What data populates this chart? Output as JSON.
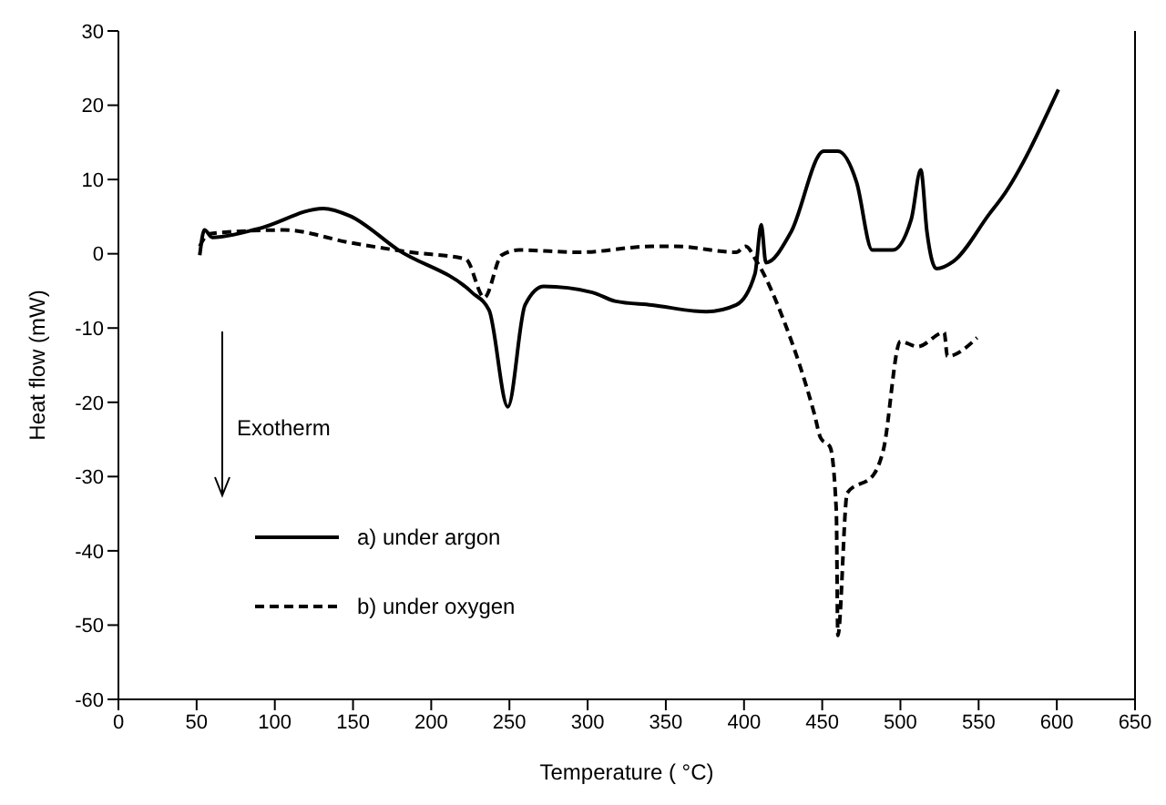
{
  "chart_data": {
    "type": "line",
    "xlabel": "Temperature ( °C)",
    "ylabel": "Heat flow (mW)",
    "annotations": [
      "Exotherm"
    ],
    "xlim": [
      0,
      650
    ],
    "xticks": [
      0,
      50,
      100,
      150,
      200,
      250,
      300,
      350,
      400,
      450,
      500,
      550,
      600,
      650
    ],
    "ylim": [
      -60,
      30
    ],
    "yticks": [
      -60,
      -50,
      -40,
      -30,
      -20,
      -10,
      0,
      10,
      20,
      30
    ],
    "grid": false,
    "legend": "bottom left",
    "marker": "none",
    "series": [
      {
        "name": "a) under argon",
        "color": "#000000",
        "line_style": "solid",
        "x": [
          52,
          55,
          60,
          90,
          131,
          148,
          179,
          226,
          237,
          249,
          260,
          272,
          303,
          318,
          341,
          376,
          395,
          407,
          411,
          414,
          430,
          451,
          460,
          472,
          482,
          495,
          507,
          513,
          517,
          523,
          534,
          557,
          565,
          601
        ],
        "values": [
          -0.2,
          3.2,
          2.2,
          3.4,
          6.1,
          5.1,
          0.5,
          -5.2,
          -7.6,
          -20.6,
          -6.9,
          -4.4,
          -5.2,
          -6.4,
          -6.9,
          -7.8,
          -6.9,
          -2.7,
          3.9,
          -1.2,
          2.9,
          13.8,
          13.8,
          9.6,
          0.5,
          0.5,
          4.7,
          11.3,
          2.9,
          -2,
          -1,
          5.4,
          7.6,
          22.1
        ]
      },
      {
        "name": "b) under oxygen",
        "color": "#000000",
        "line_style": "dashed",
        "x": [
          52,
          58,
          106,
          148,
          187,
          222,
          234,
          245,
          256,
          295,
          341,
          356,
          395,
          401,
          408,
          426,
          445,
          449,
          455,
          459,
          460,
          466,
          483,
          489,
          500,
          511,
          528,
          530,
          549
        ],
        "values": [
          1,
          2.7,
          3.2,
          1.5,
          0.2,
          -0.7,
          -5.9,
          -0.2,
          0.5,
          0.2,
          1,
          1,
          0.2,
          1,
          -1,
          -9.3,
          -21.6,
          -24.8,
          -26,
          -34.6,
          -51.4,
          -32.2,
          -29.7,
          -26.5,
          -11.8,
          -12.5,
          -10.6,
          -13.8,
          -11.3
        ]
      }
    ]
  }
}
